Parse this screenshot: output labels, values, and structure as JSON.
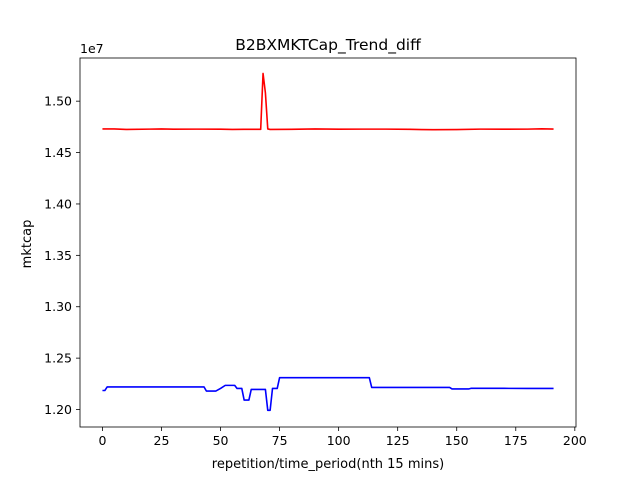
{
  "chart_data": {
    "type": "line",
    "title": "B2BXMKTCap_Trend_diff",
    "xlabel": "repetition/time_period(nth 15 mins)",
    "ylabel": "mktcap",
    "y_offset_label": "1e7",
    "xlim": [
      -9.5,
      200.5
    ],
    "ylim": [
      11830000,
      15420000
    ],
    "x_ticks": [
      0,
      25,
      50,
      75,
      100,
      125,
      150,
      175,
      200
    ],
    "x_tick_labels": [
      "0",
      "25",
      "50",
      "75",
      "100",
      "125",
      "150",
      "175",
      "200"
    ],
    "y_ticks": [
      12000000,
      12500000,
      13000000,
      13500000,
      14000000,
      14500000,
      15000000
    ],
    "y_tick_labels": [
      "1.20",
      "1.25",
      "1.30",
      "1.35",
      "1.40",
      "1.45",
      "1.50"
    ],
    "grid": false,
    "legend": "none",
    "series": [
      {
        "color": "#ff0000",
        "points": [
          [
            0,
            14730000
          ],
          [
            5,
            14730000
          ],
          [
            10,
            14725000
          ],
          [
            20,
            14728000
          ],
          [
            25,
            14730000
          ],
          [
            30,
            14727000
          ],
          [
            40,
            14728000
          ],
          [
            50,
            14727000
          ],
          [
            55,
            14725000
          ],
          [
            60,
            14726000
          ],
          [
            67,
            14726000
          ],
          [
            68,
            15270000
          ],
          [
            69,
            15080000
          ],
          [
            70,
            14730000
          ],
          [
            71,
            14725000
          ],
          [
            80,
            14726000
          ],
          [
            90,
            14730000
          ],
          [
            100,
            14727000
          ],
          [
            110,
            14728000
          ],
          [
            120,
            14728000
          ],
          [
            130,
            14726000
          ],
          [
            135,
            14724000
          ],
          [
            140,
            14723000
          ],
          [
            150,
            14724000
          ],
          [
            160,
            14728000
          ],
          [
            170,
            14727000
          ],
          [
            180,
            14728000
          ],
          [
            186,
            14731000
          ],
          [
            191,
            14729000
          ]
        ]
      },
      {
        "color": "#0000ff",
        "points": [
          [
            0,
            12185000
          ],
          [
            1,
            12185000
          ],
          [
            2,
            12220000
          ],
          [
            10,
            12220000
          ],
          [
            20,
            12220000
          ],
          [
            30,
            12220000
          ],
          [
            40,
            12220000
          ],
          [
            43,
            12220000
          ],
          [
            44,
            12180000
          ],
          [
            48,
            12180000
          ],
          [
            50,
            12205000
          ],
          [
            52,
            12235000
          ],
          [
            56,
            12235000
          ],
          [
            57,
            12205000
          ],
          [
            59,
            12205000
          ],
          [
            60,
            12092000
          ],
          [
            62,
            12092000
          ],
          [
            63,
            12195000
          ],
          [
            69,
            12195000
          ],
          [
            70,
            11992000
          ],
          [
            71,
            11992000
          ],
          [
            72,
            12205000
          ],
          [
            74,
            12205000
          ],
          [
            75,
            12310000
          ],
          [
            90,
            12310000
          ],
          [
            100,
            12310000
          ],
          [
            110,
            12310000
          ],
          [
            113,
            12310000
          ],
          [
            114,
            12215000
          ],
          [
            120,
            12215000
          ],
          [
            130,
            12215000
          ],
          [
            140,
            12215000
          ],
          [
            147,
            12215000
          ],
          [
            148,
            12200000
          ],
          [
            155,
            12200000
          ],
          [
            156,
            12206000
          ],
          [
            170,
            12206000
          ],
          [
            180,
            12205000
          ],
          [
            191,
            12205000
          ]
        ]
      }
    ]
  }
}
